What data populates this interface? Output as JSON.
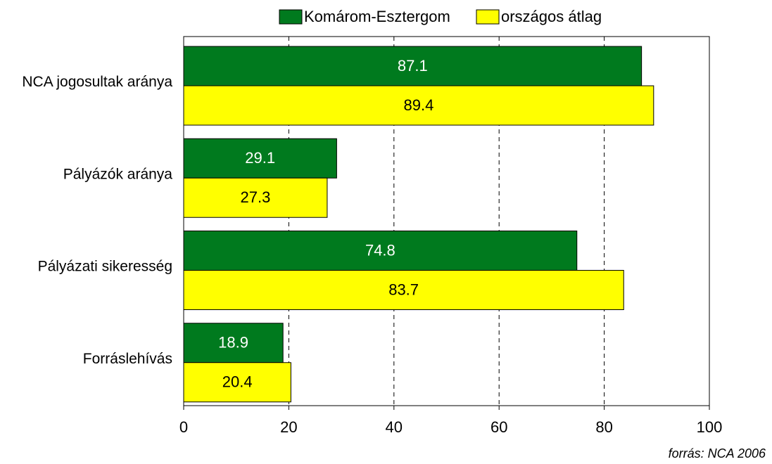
{
  "chart_data": {
    "type": "hbar",
    "categories": [
      "NCA jogosultak aránya",
      "Pályázók aránya",
      "Pályázati sikeresség",
      "Forráslehívás"
    ],
    "series": [
      {
        "name": "Komárom-Esztergom",
        "color": "#007a1e",
        "values": [
          87.1,
          29.1,
          74.8,
          18.9
        ]
      },
      {
        "name": "országos átlag",
        "color": "#ffff00",
        "values": [
          89.4,
          27.3,
          83.7,
          20.4
        ]
      }
    ],
    "xlim": [
      0,
      100
    ],
    "xticks": [
      0,
      20,
      40,
      60,
      80,
      100
    ],
    "grid": true,
    "legend": "top",
    "source": "forrás: NCA 2006"
  }
}
